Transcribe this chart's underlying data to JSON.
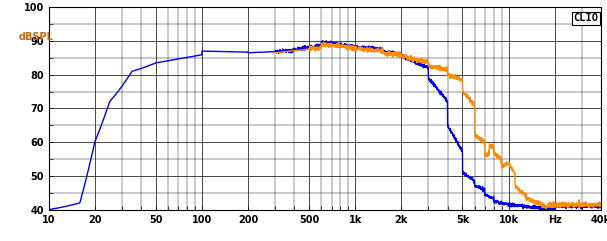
{
  "title": "CLIO",
  "ylabel": "dBSPL",
  "xmin": 10,
  "xmax": 40000,
  "ymin": 40,
  "ymax": 100,
  "yticks": [
    40,
    50,
    60,
    70,
    80,
    90,
    100
  ],
  "xtick_positions": [
    10,
    20,
    50,
    100,
    200,
    500,
    1000,
    2000,
    5000,
    10000,
    20000,
    40000
  ],
  "xtick_labels": [
    "10",
    "20",
    "50",
    "100",
    "200",
    "500",
    "1k",
    "2k",
    "5k",
    "10k",
    "Hz",
    "40k"
  ],
  "blue_color": "#0000ee",
  "orange_color": "#ff8c00",
  "bg_color": "#ffffff",
  "grid_color": "#000000",
  "label_color": "#cc6600",
  "linewidth": 1.0
}
